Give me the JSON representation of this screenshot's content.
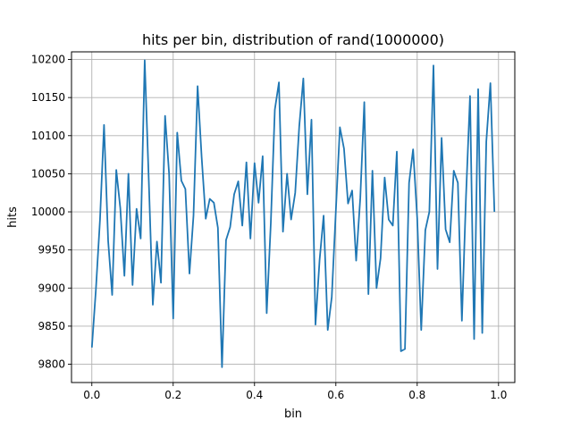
{
  "chart_data": {
    "type": "line",
    "title": "hits per bin, distribution of rand(1000000)",
    "xlabel": "bin",
    "ylabel": "hits",
    "xlim": [
      -0.05,
      1.04
    ],
    "ylim": [
      9776,
      10210
    ],
    "grid": true,
    "color": "#1f77b4",
    "x_ticks": [
      0.0,
      0.2,
      0.4,
      0.6,
      0.8,
      1.0
    ],
    "x_tick_labels": [
      "0.0",
      "0.2",
      "0.4",
      "0.6",
      "0.8",
      "1.0"
    ],
    "y_ticks": [
      9800,
      9850,
      9900,
      9950,
      10000,
      10050,
      10100,
      10150,
      10200
    ],
    "y_tick_labels": [
      "9800",
      "9850",
      "9900",
      "9950",
      "10000",
      "10050",
      "10100",
      "10150",
      "10200"
    ],
    "series": [
      {
        "x": [
          0.0,
          0.01,
          0.02,
          0.03,
          0.04,
          0.05,
          0.06,
          0.07,
          0.08,
          0.09,
          0.1,
          0.11,
          0.12,
          0.13,
          0.14,
          0.15,
          0.16,
          0.17,
          0.18,
          0.19,
          0.2,
          0.21,
          0.22,
          0.23,
          0.24,
          0.25,
          0.26,
          0.27,
          0.28,
          0.29,
          0.3,
          0.31,
          0.32,
          0.33,
          0.34,
          0.35,
          0.36,
          0.37,
          0.38,
          0.39,
          0.4,
          0.41,
          0.42,
          0.43,
          0.44,
          0.45,
          0.46,
          0.47,
          0.48,
          0.49,
          0.5,
          0.51,
          0.52,
          0.53,
          0.54,
          0.55,
          0.56,
          0.57,
          0.58,
          0.59,
          0.6,
          0.61,
          0.62,
          0.63,
          0.64,
          0.65,
          0.66,
          0.67,
          0.68,
          0.69,
          0.7,
          0.71,
          0.72,
          0.73,
          0.74,
          0.75,
          0.76,
          0.77,
          0.78,
          0.79,
          0.8,
          0.81,
          0.82,
          0.83,
          0.84,
          0.85,
          0.86,
          0.87,
          0.88,
          0.89,
          0.9,
          0.91,
          0.92,
          0.93,
          0.94,
          0.95,
          0.96,
          0.97,
          0.98,
          0.99
        ],
        "y": [
          9822,
          9898,
          9990,
          10114,
          9962,
          9891,
          10055,
          10005,
          9916,
          10050,
          9904,
          10004,
          9965,
          10199,
          10040,
          9878,
          9961,
          9907,
          10126,
          10050,
          9860,
          10104,
          10041,
          10030,
          9919,
          9995,
          10165,
          10072,
          9991,
          10017,
          10012,
          9979,
          9796,
          9963,
          9980,
          10023,
          10040,
          9982,
          10065,
          9965,
          10064,
          10012,
          10073,
          9867,
          9985,
          10134,
          10170,
          9974,
          10050,
          9990,
          10025,
          10112,
          10175,
          10023,
          10121,
          9852,
          9937,
          9995,
          9845,
          9888,
          10002,
          10111,
          10083,
          10011,
          10028,
          9936,
          10018,
          10144,
          9892,
          10054,
          9900,
          9939,
          10045,
          9990,
          9982,
          10079,
          9817,
          9820,
          10038,
          10082,
          9992,
          9845,
          9976,
          10000,
          10192,
          9925,
          10097,
          9977,
          9960,
          10054,
          10038,
          9857,
          10020,
          10152,
          9833,
          10161,
          9841,
          10092,
          10169,
          10000
        ]
      }
    ]
  }
}
